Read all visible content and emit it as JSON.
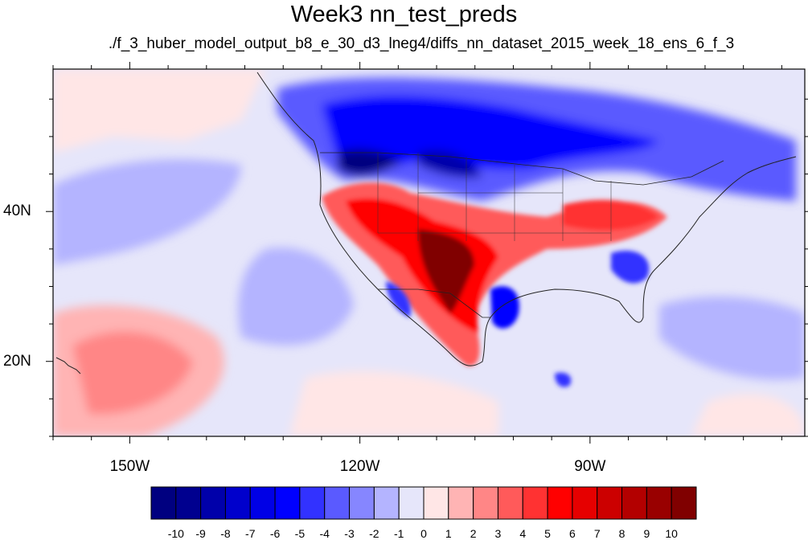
{
  "title": "Week3 nn_test_preds",
  "subtitle": "./f_3_huber_model_output_b8_e_30_d3_lneg4/diffs_nn_dataset_2015_week_18_ens_6_f_3",
  "map": {
    "lon_range": [
      -160,
      -62
    ],
    "lat_range": [
      10,
      59
    ],
    "lon_ticks": [
      {
        "value": -150,
        "label": "150W"
      },
      {
        "value": -120,
        "label": "120W"
      },
      {
        "value": -90,
        "label": "90W"
      }
    ],
    "lat_ticks": [
      {
        "value": 40,
        "label": "40N"
      },
      {
        "value": 20,
        "label": "20N"
      }
    ]
  },
  "colorbar": {
    "levels": [
      "-10",
      "-9",
      "-8",
      "-7",
      "-6",
      "-5",
      "-4",
      "-3",
      "-2",
      "-1",
      "0",
      "1",
      "2",
      "3",
      "4",
      "5",
      "6",
      "7",
      "8",
      "9",
      "10"
    ],
    "colors": [
      "#000080",
      "#00008f",
      "#0000aa",
      "#0000cc",
      "#0000e6",
      "#0000ff",
      "#3232ff",
      "#5a5aff",
      "#8686ff",
      "#b4b4ff",
      "#e6e6fa",
      "#ffe6e6",
      "#ffb4b4",
      "#ff8686",
      "#ff5a5a",
      "#ff3232",
      "#ff0000",
      "#e60000",
      "#cc0000",
      "#b30000",
      "#990000",
      "#800000"
    ]
  }
}
